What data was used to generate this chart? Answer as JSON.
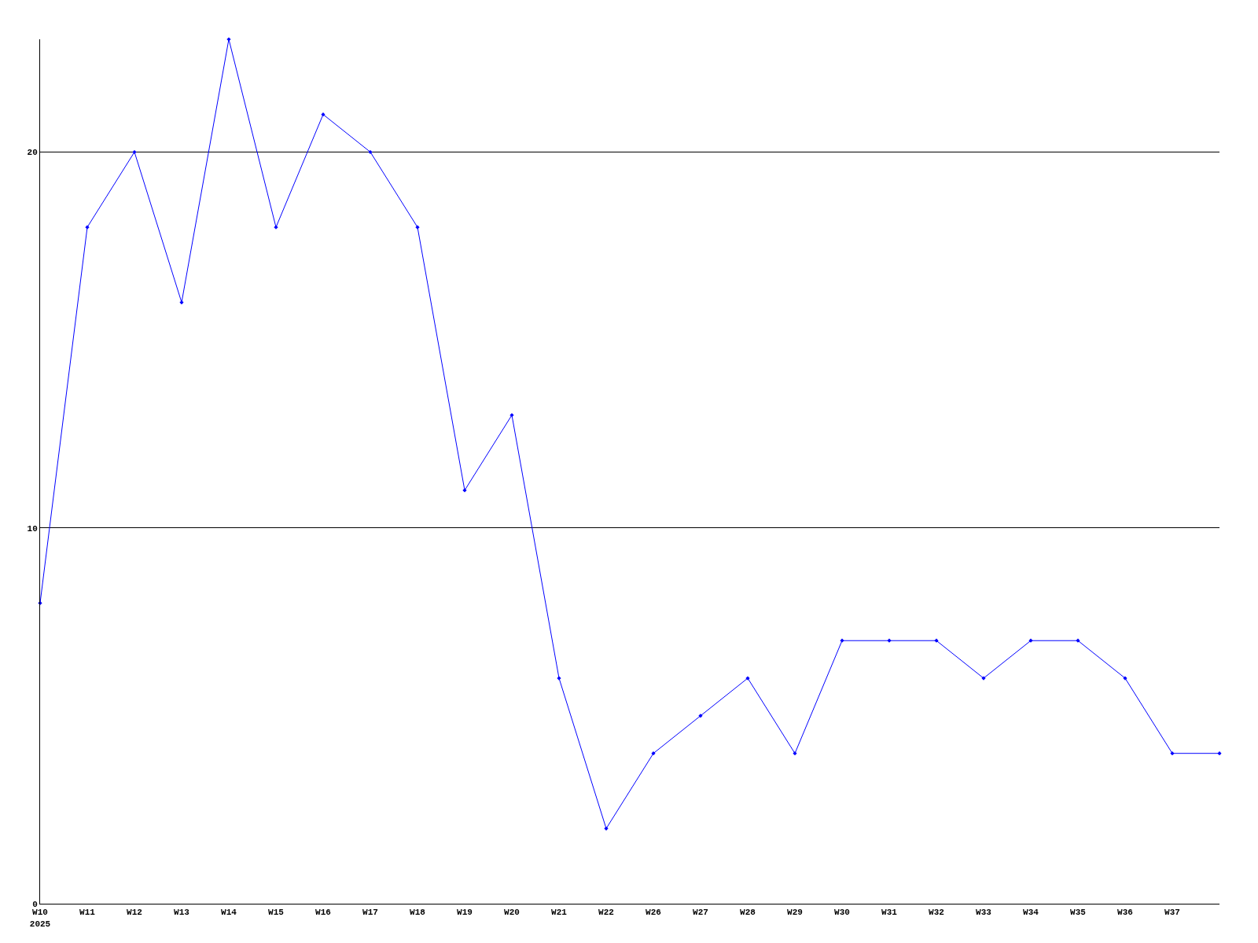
{
  "chart_data": {
    "type": "line",
    "categories": [
      "W10\n2025",
      "W11",
      "W12",
      "W13",
      "W14",
      "W15",
      "W16",
      "W17",
      "W18",
      "W19",
      "W20",
      "W21",
      "W22",
      "W26",
      "W27",
      "W28",
      "W29",
      "W30",
      "W31",
      "W32",
      "W33",
      "W34",
      "W35",
      "W36",
      "W37",
      null
    ],
    "series": [
      {
        "color": "#0000ff",
        "values": [
          8,
          18,
          20,
          16,
          23,
          18,
          21,
          20,
          18,
          11,
          13,
          6,
          2,
          4,
          5,
          6,
          4,
          7,
          7,
          7,
          6,
          7,
          7,
          6,
          4,
          4
        ]
      }
    ],
    "ylim": [
      0,
      23
    ],
    "yticks": [
      0,
      10,
      20
    ],
    "grid": "y",
    "marker": "diamond",
    "line_style": "solid"
  }
}
